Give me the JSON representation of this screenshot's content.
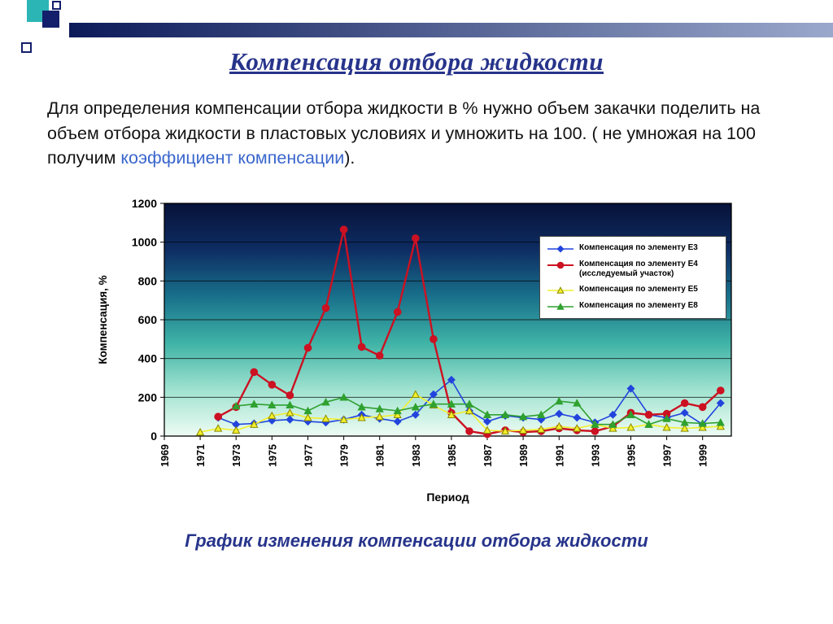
{
  "slide": {
    "title": "Компенсация отбора жидкости",
    "paragraph": {
      "text_before": "Для определения компенсации отбора жидкости в % нужно объем закачки поделить на объем отбора жидкости в пластовых условиях и умножить на 100. ( не умножая на 100 получим ",
      "highlight": "коэффициент компенсации",
      "text_after": ")."
    },
    "caption": "График изменения компенсации отбора жидкости",
    "colors": {
      "title": "#27348b",
      "caption": "#27348b",
      "highlight": "#3a66cc",
      "teal": "#2cb5b5",
      "navy": "#131f6b",
      "bar_start": "#0c1a5a",
      "bar_end": "#9aa8cc"
    }
  },
  "chart_data": {
    "type": "line",
    "title": "",
    "xlabel": "Период",
    "ylabel": "Компенсация, %",
    "xlim": [
      1969,
      2000.6
    ],
    "ylim": [
      0,
      1200
    ],
    "ytick_step": 200,
    "xticks": [
      1969,
      1971,
      1973,
      1975,
      1977,
      1979,
      1981,
      1983,
      1985,
      1987,
      1989,
      1991,
      1993,
      1995,
      1997,
      1999
    ],
    "grid": true,
    "legend_position": "inside top-right",
    "plot_bg_gradient": [
      "#071238",
      "#0e2d63",
      "#18708b",
      "#3fb3a6",
      "#9fe2cf",
      "#eefcf4"
    ],
    "series": [
      {
        "name": "Компенсация по элементу Е3",
        "color": "#2244dd",
        "marker": "diamond",
        "line_width": 1.6,
        "points": [
          [
            1972,
            95
          ],
          [
            1973,
            60
          ],
          [
            1974,
            65
          ],
          [
            1975,
            80
          ],
          [
            1976,
            85
          ],
          [
            1977,
            75
          ],
          [
            1978,
            70
          ],
          [
            1979,
            85
          ],
          [
            1980,
            110
          ],
          [
            1981,
            90
          ],
          [
            1982,
            75
          ],
          [
            1983,
            110
          ],
          [
            1984,
            215
          ],
          [
            1985,
            290
          ],
          [
            1986,
            130
          ],
          [
            1987,
            75
          ],
          [
            1988,
            105
          ],
          [
            1989,
            95
          ],
          [
            1990,
            85
          ],
          [
            1991,
            115
          ],
          [
            1992,
            95
          ],
          [
            1993,
            70
          ],
          [
            1994,
            110
          ],
          [
            1995,
            245
          ],
          [
            1996,
            110
          ],
          [
            1997,
            95
          ],
          [
            1998,
            120
          ],
          [
            1999,
            60
          ],
          [
            2000,
            170
          ]
        ]
      },
      {
        "name": "Компенсация по элементу Е4 (исследуемый участок)",
        "color": "#cc1122",
        "marker": "circle",
        "line_width": 2.4,
        "points": [
          [
            1972,
            100
          ],
          [
            1973,
            150
          ],
          [
            1974,
            330
          ],
          [
            1975,
            265
          ],
          [
            1976,
            210
          ],
          [
            1977,
            455
          ],
          [
            1978,
            660
          ],
          [
            1979,
            1065
          ],
          [
            1980,
            460
          ],
          [
            1981,
            415
          ],
          [
            1982,
            640
          ],
          [
            1983,
            1020
          ],
          [
            1984,
            500
          ],
          [
            1985,
            120
          ],
          [
            1986,
            25
          ],
          [
            1987,
            10
          ],
          [
            1988,
            30
          ],
          [
            1989,
            20
          ],
          [
            1990,
            25
          ],
          [
            1991,
            40
          ],
          [
            1992,
            30
          ],
          [
            1993,
            25
          ],
          [
            1994,
            50
          ],
          [
            1995,
            120
          ],
          [
            1996,
            110
          ],
          [
            1997,
            115
          ],
          [
            1998,
            170
          ],
          [
            1999,
            150
          ],
          [
            2000,
            235
          ]
        ]
      },
      {
        "name": "Компенсация по элементу Е5",
        "color": "#f2ef2a",
        "marker": "triangle",
        "marker_stroke": "#8a8a00",
        "line_width": 1.6,
        "points": [
          [
            1971,
            20
          ],
          [
            1972,
            40
          ],
          [
            1973,
            30
          ],
          [
            1974,
            60
          ],
          [
            1975,
            105
          ],
          [
            1976,
            120
          ],
          [
            1977,
            95
          ],
          [
            1978,
            90
          ],
          [
            1979,
            85
          ],
          [
            1980,
            95
          ],
          [
            1981,
            100
          ],
          [
            1982,
            110
          ],
          [
            1983,
            215
          ],
          [
            1984,
            160
          ],
          [
            1985,
            110
          ],
          [
            1986,
            130
          ],
          [
            1987,
            30
          ],
          [
            1988,
            25
          ],
          [
            1989,
            30
          ],
          [
            1990,
            35
          ],
          [
            1991,
            50
          ],
          [
            1992,
            40
          ],
          [
            1993,
            60
          ],
          [
            1994,
            40
          ],
          [
            1995,
            45
          ],
          [
            1996,
            60
          ],
          [
            1997,
            45
          ],
          [
            1998,
            40
          ],
          [
            1999,
            45
          ],
          [
            2000,
            50
          ]
        ]
      },
      {
        "name": "Компенсация по элементу Е8",
        "color": "#2fa12f",
        "marker": "triangle",
        "line_width": 1.6,
        "points": [
          [
            1973,
            155
          ],
          [
            1974,
            165
          ],
          [
            1975,
            160
          ],
          [
            1976,
            160
          ],
          [
            1977,
            130
          ],
          [
            1978,
            175
          ],
          [
            1979,
            200
          ],
          [
            1980,
            150
          ],
          [
            1981,
            140
          ],
          [
            1982,
            130
          ],
          [
            1983,
            150
          ],
          [
            1984,
            165
          ],
          [
            1985,
            165
          ],
          [
            1986,
            165
          ],
          [
            1987,
            110
          ],
          [
            1988,
            110
          ],
          [
            1989,
            100
          ],
          [
            1990,
            110
          ],
          [
            1991,
            180
          ],
          [
            1992,
            170
          ],
          [
            1993,
            60
          ],
          [
            1994,
            60
          ],
          [
            1995,
            110
          ],
          [
            1996,
            60
          ],
          [
            1997,
            90
          ],
          [
            1998,
            70
          ],
          [
            1999,
            65
          ],
          [
            2000,
            70
          ]
        ]
      }
    ]
  }
}
